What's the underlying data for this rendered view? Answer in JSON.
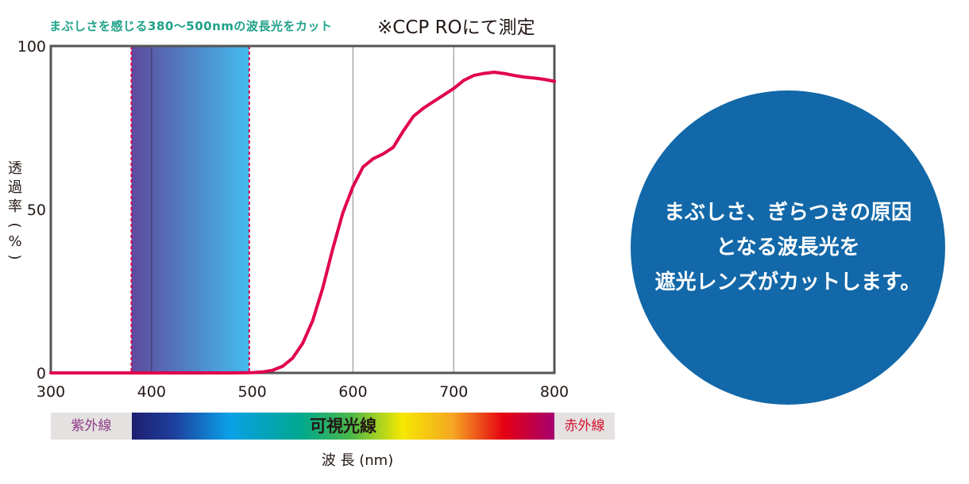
{
  "header": {
    "subtitle": "まぶしさを感じる380～500nmの波長光をカット",
    "note": "※CCP ROにて測定"
  },
  "chart_data": {
    "type": "line",
    "xlabel": "波 長 (nm)",
    "ylabel": "透過率(%)",
    "xlim": [
      300,
      800
    ],
    "ylim": [
      0,
      100
    ],
    "x_ticks": [
      "300",
      "400",
      "500",
      "600",
      "700",
      "800"
    ],
    "y_ticks": [
      "0",
      "50",
      "100"
    ],
    "grid": "vertical lines at 400, 600, 700",
    "highlight_band": {
      "from": 380,
      "to": 497,
      "colors": [
        "#5d4a9e",
        "#44bcee"
      ]
    },
    "line_color": "#e0004d",
    "series": [
      {
        "x": [
          300,
          380,
          480,
          500,
          510,
          520,
          530,
          540,
          550,
          560,
          570,
          580,
          590,
          600,
          610,
          620,
          630,
          640,
          650,
          660,
          670,
          680,
          690,
          700,
          710,
          720,
          730,
          740,
          750,
          760,
          770,
          780,
          790,
          800
        ],
        "values": [
          0,
          0,
          0,
          0.1,
          0.3,
          0.8,
          2,
          4.5,
          9,
          16,
          26,
          38,
          49,
          57,
          63,
          65.5,
          67,
          69,
          74,
          78.5,
          81,
          83,
          85,
          87,
          89.5,
          91,
          91.6,
          92,
          91.6,
          91,
          90.5,
          90.2,
          89.8,
          89.2
        ]
      }
    ],
    "spectrum_bar": {
      "uv_label": "紫外線",
      "visible_label": "可視光線",
      "ir_label": "赤外線"
    }
  },
  "callout": {
    "line1": "まぶしさ、ぎらつきの原因",
    "line2": "となる波長光を",
    "line3": "遮光レンズがカットします。"
  }
}
